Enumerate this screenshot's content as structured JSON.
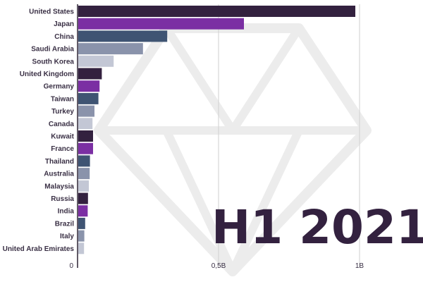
{
  "chart_data": {
    "type": "bar",
    "orientation": "horizontal",
    "categories": [
      "United States",
      "Japan",
      "China",
      "Saudi Arabia",
      "South Korea",
      "United Kingdom",
      "Germany",
      "Taiwan",
      "Turkey",
      "Canada",
      "Kuwait",
      "France",
      "Thailand",
      "Australia",
      "Malaysia",
      "Russia",
      "India",
      "Brazil",
      "Italy",
      "United Arab Emirates"
    ],
    "values": [
      985000000,
      590000000,
      318000000,
      232000000,
      128000000,
      86000000,
      78000000,
      74000000,
      60000000,
      53000000,
      55000000,
      55000000,
      44000000,
      43000000,
      40000000,
      37000000,
      36000000,
      27000000,
      24000000,
      23000000
    ],
    "bar_colors": [
      "#33213f",
      "#7b2fa3",
      "#3f5473",
      "#8a93ab",
      "#c3c7d5",
      "#33213f",
      "#7b2fa3",
      "#3f5473",
      "#8a93ab",
      "#c3c7d5",
      "#33213f",
      "#7b2fa3",
      "#3f5473",
      "#8a93ab",
      "#c3c7d5",
      "#33213f",
      "#7b2fa3",
      "#3f5473",
      "#8a93ab",
      "#c3c7d5"
    ],
    "xlim": [
      0,
      1000000000
    ],
    "ticks": [
      {
        "value": 0,
        "label": "0"
      },
      {
        "value": 500000000,
        "label": "0,5B"
      },
      {
        "value": 1000000000,
        "label": "1B"
      }
    ],
    "grid": true,
    "period_label": "H1 2021",
    "title": "",
    "xlabel": "",
    "ylabel": ""
  },
  "colors": {
    "text": "#3a3045",
    "grid": "#cfcfcf",
    "axis": "#2d2333",
    "period": "#33213f",
    "watermark": "#ececec"
  }
}
